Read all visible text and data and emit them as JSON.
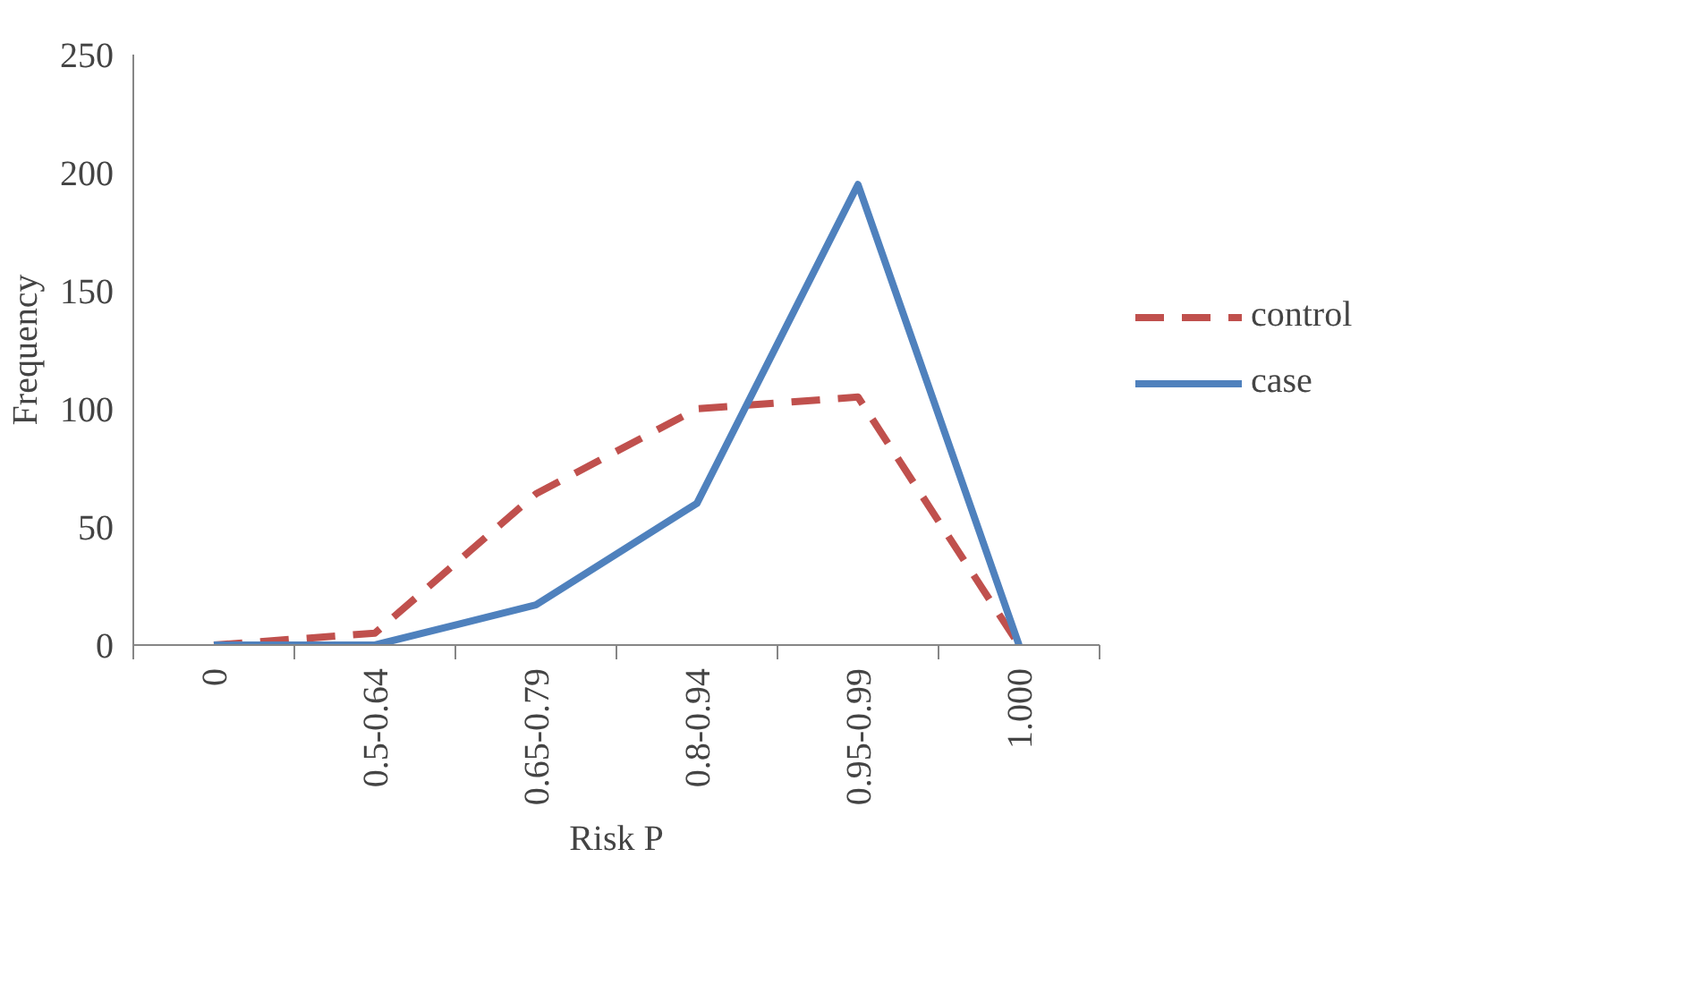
{
  "chart_data": {
    "type": "line",
    "xlabel": "Risk P",
    "ylabel": "Frequency",
    "categories": [
      "0",
      "0.5-0.64",
      "0.65-0.79",
      "0.8-0.94",
      "0.95-0.99",
      "1.000"
    ],
    "series": [
      {
        "name": "control",
        "color": "#c0504d",
        "line_style": "dashed",
        "values": [
          0,
          5,
          64,
          100,
          105,
          0
        ]
      },
      {
        "name": "case",
        "color": "#4f81bd",
        "line_style": "solid",
        "values": [
          0,
          0,
          17,
          60,
          195,
          0
        ]
      }
    ],
    "ylim": [
      0,
      250
    ],
    "yticks": [
      0,
      50,
      100,
      150,
      200,
      250
    ],
    "grid": false,
    "legend": "right"
  }
}
